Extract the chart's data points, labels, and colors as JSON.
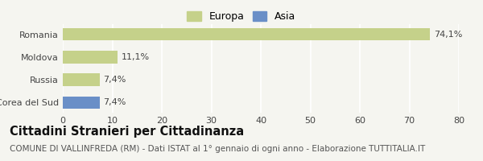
{
  "categories": [
    "Corea del Sud",
    "Russia",
    "Moldova",
    "Romania"
  ],
  "values": [
    7.4,
    7.4,
    11.1,
    74.1
  ],
  "labels": [
    "7,4%",
    "7,4%",
    "11,1%",
    "74,1%"
  ],
  "colors": [
    "#6a8fc7",
    "#c5d18a",
    "#c5d18a",
    "#c5d18a"
  ],
  "legend": [
    {
      "label": "Europa",
      "color": "#c5d18a"
    },
    {
      "label": "Asia",
      "color": "#6a8fc7"
    }
  ],
  "xlim": [
    0,
    80
  ],
  "xticks": [
    0,
    10,
    20,
    30,
    40,
    50,
    60,
    70,
    80
  ],
  "title": "Cittadini Stranieri per Cittadinanza",
  "subtitle": "COMUNE DI VALLINFREDA (RM) - Dati ISTAT al 1° gennaio di ogni anno - Elaborazione TUTTITALIA.IT",
  "background_color": "#f5f5f0",
  "bar_edge_color": "none",
  "grid_color": "#ffffff",
  "title_fontsize": 10.5,
  "subtitle_fontsize": 7.5,
  "label_fontsize": 8,
  "tick_fontsize": 8,
  "legend_fontsize": 9
}
